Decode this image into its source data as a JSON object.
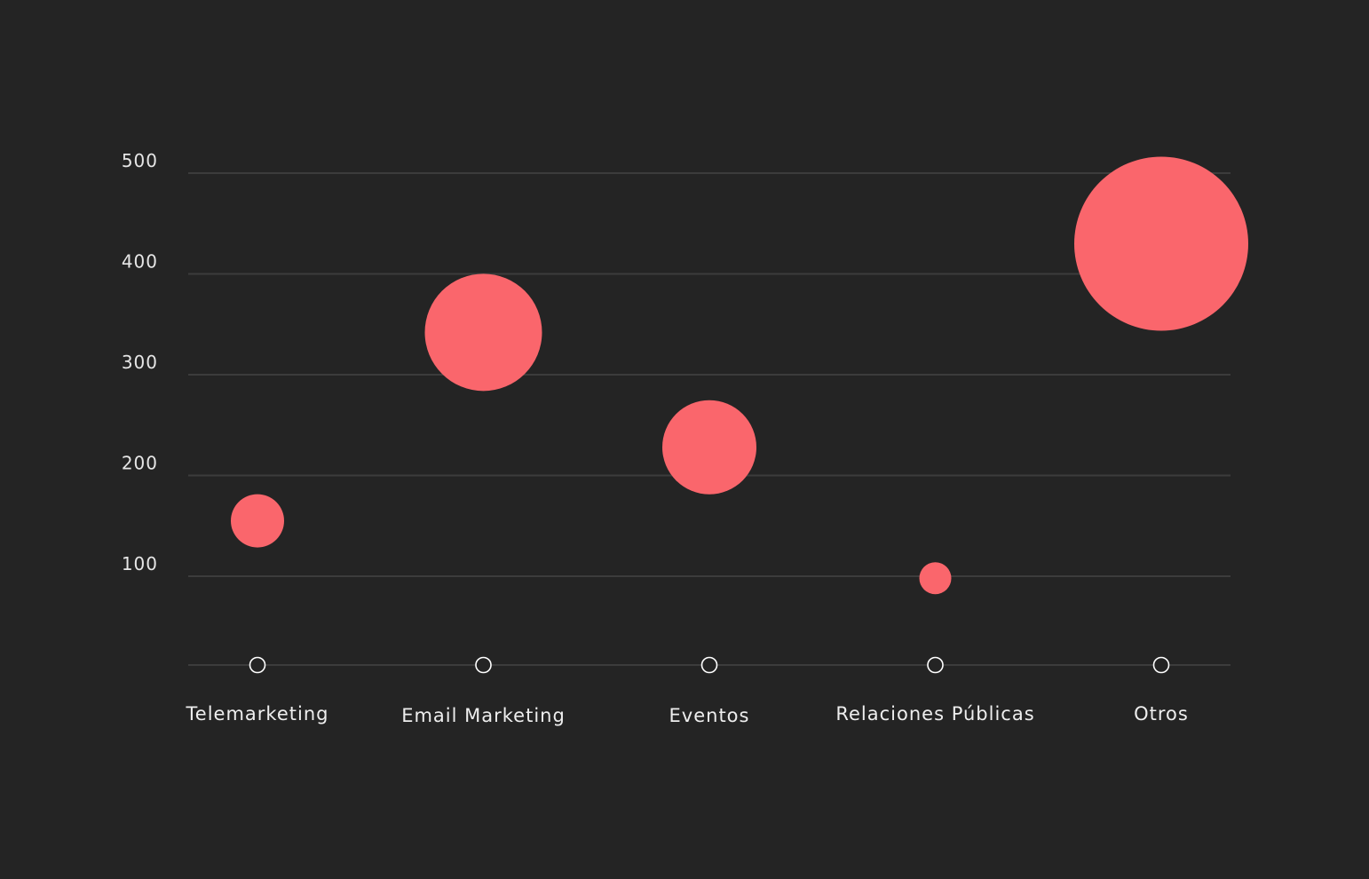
{
  "chart_data": {
    "type": "scatter",
    "categories": [
      "Telemarketing",
      "Email Marketing",
      "Eventos",
      "Relaciones Públicas",
      "Otros"
    ],
    "values": [
      155,
      342,
      228,
      98,
      430
    ],
    "bubble_sizes": [
      30,
      66,
      53,
      18,
      98
    ],
    "title": "",
    "xlabel": "",
    "ylabel": "",
    "yticks": [
      100,
      200,
      300,
      400,
      500
    ],
    "ylim": [
      12,
      500
    ],
    "grid": true,
    "legend": "none",
    "colors": {
      "bubble": "#fa666c",
      "background": "#242424",
      "gridline": "#3c3c3c",
      "text": "#eeeeee",
      "marker": "#ffffff"
    }
  }
}
